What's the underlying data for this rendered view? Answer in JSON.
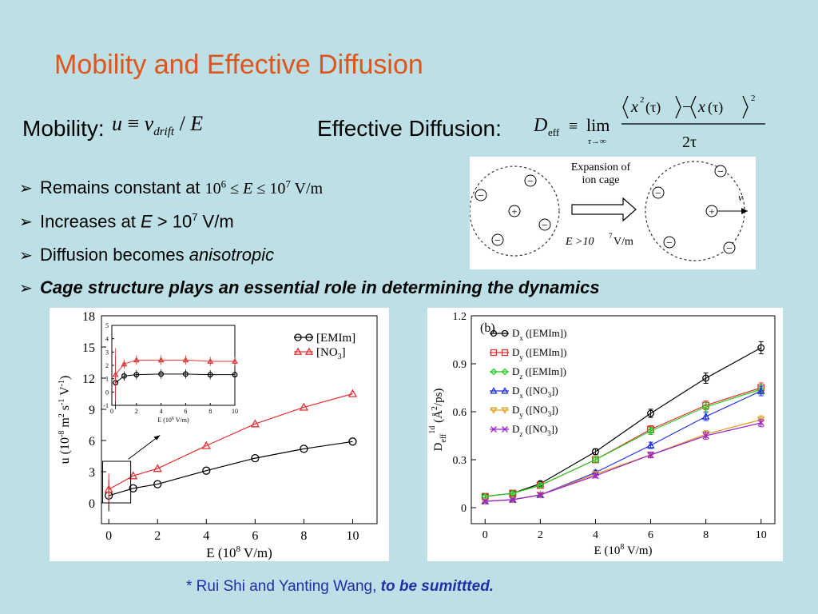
{
  "slide": {
    "title": "Mobility and Effective Diffusion",
    "mobility_label": "Mobility:",
    "mobility_eq": {
      "u": "u",
      "equiv": "≡",
      "v": "v",
      "sub": "drift",
      "slash": "/",
      "E": "E"
    },
    "effective_label": "Effective Diffusion:",
    "effective_eq": {
      "D": "D",
      "eff": "eff",
      "equiv": "≡",
      "lim": "lim",
      "limsub": "τ→∞",
      "x2": "x",
      "two": "2",
      "tau": "(τ)",
      "minus": "−",
      "x": "x",
      "sq": "2",
      "den": "2τ"
    },
    "bullets": [
      {
        "pre": "Remains constant at ",
        "a": "10",
        "a_exp": "6",
        "b": " ≤ ",
        "E": "E",
        "c": " ≤ 10",
        "c_exp": "7",
        "d": " V/m"
      },
      {
        "pre": "Increases at ",
        "E": "E",
        "b": " > 10",
        "b_exp": "7",
        "c": " V/m"
      },
      {
        "pre": "Diffusion becomes ",
        "em": "anisotropic"
      },
      {
        "strong": "Cage structure plays an essential role in determining the dynamics"
      }
    ],
    "bullet_glyph": "➢",
    "footnote": {
      "text": "* Rui Shi and Yanting Wang, ",
      "em": "to be sumittted."
    }
  },
  "cage_diagram": {
    "caption_1": "Expansion of",
    "caption_2": "ion cage",
    "field": "E >10",
    "field_exp": "7",
    "field_unit": " V/m",
    "velocity": "v",
    "plus": "+",
    "minus": "−"
  },
  "chart_data": [
    {
      "type": "line",
      "xlabel": "E (10^8 V/m)",
      "ylabel": "u (10^-8 m^2 s^-1 V^-1)",
      "xlim": [
        -0.3,
        11
      ],
      "ylim": [
        -2,
        18
      ],
      "xticks": [
        0,
        2,
        4,
        6,
        8,
        10
      ],
      "yticks": [
        0,
        3,
        6,
        9,
        12,
        15,
        18
      ],
      "legend_position": "top-right",
      "series": [
        {
          "name": "[EMIm]",
          "color": "#000000",
          "marker": "circle",
          "x": [
            0,
            0.1,
            0.2,
            0.4,
            0.6,
            0.8,
            1,
            2,
            4,
            6,
            8,
            10
          ],
          "y": [
            0.7,
            1.2,
            1.3,
            1.35,
            1.35,
            1.3,
            1.4,
            1.8,
            3.1,
            4.3,
            5.2,
            5.9
          ]
        },
        {
          "name": "[NO3]",
          "color": "#e53030",
          "marker": "triangle",
          "x": [
            0,
            0.1,
            0.2,
            0.4,
            0.6,
            0.8,
            1,
            2,
            4,
            6,
            8,
            10
          ],
          "y": [
            1.3,
            2.2,
            2.4,
            2.4,
            2.4,
            2.3,
            2.6,
            3.3,
            5.5,
            7.6,
            9.2,
            10.5
          ]
        }
      ],
      "error_bars": true,
      "inset": {
        "xlabel": "E (10^6 V/m)",
        "xlim": [
          0,
          10
        ],
        "ylim": [
          -1,
          5
        ],
        "xticks": [
          0,
          2,
          4,
          6,
          8,
          10
        ],
        "yticks": [
          -1,
          0,
          1,
          2,
          3,
          4,
          5
        ],
        "series": [
          {
            "name": "[EMIm]",
            "x": [
              0.3,
              1,
              2,
              4,
              6,
              8,
              10
            ],
            "y": [
              0.7,
              1.2,
              1.3,
              1.35,
              1.35,
              1.3,
              1.3
            ]
          },
          {
            "name": "[NO3]",
            "x": [
              0.3,
              1,
              2,
              4,
              6,
              8,
              10
            ],
            "y": [
              1.3,
              2.1,
              2.4,
              2.4,
              2.4,
              2.3,
              2.3
            ]
          }
        ]
      }
    },
    {
      "type": "line",
      "panel_label": "(b)",
      "xlabel": "E (10^8 V/m)",
      "ylabel": "D_eff^1d (Å^2/ps)",
      "xlim": [
        -0.5,
        10.5
      ],
      "ylim": [
        -0.1,
        1.2
      ],
      "xticks": [
        0,
        2,
        4,
        6,
        8,
        10
      ],
      "yticks": [
        0,
        0.3,
        0.6,
        0.9,
        1.2
      ],
      "legend_position": "top-left",
      "x": [
        0,
        1,
        2,
        4,
        6,
        8,
        10
      ],
      "series": [
        {
          "name": "Dx ([EMIm])",
          "color": "#000000",
          "marker": "circle",
          "y": [
            0.07,
            0.09,
            0.15,
            0.35,
            0.59,
            0.81,
            1.0
          ]
        },
        {
          "name": "Dy ([EMIm])",
          "color": "#e53030",
          "marker": "square",
          "y": [
            0.07,
            0.09,
            0.14,
            0.3,
            0.49,
            0.64,
            0.75
          ]
        },
        {
          "name": "Dz ([EMIm])",
          "color": "#22cc22",
          "marker": "diamond",
          "y": [
            0.07,
            0.09,
            0.14,
            0.3,
            0.48,
            0.63,
            0.74
          ]
        },
        {
          "name": "Dx ([NO3])",
          "color": "#1f2fe0",
          "marker": "triangle-up",
          "y": [
            0.04,
            0.05,
            0.08,
            0.22,
            0.39,
            0.57,
            0.73
          ]
        },
        {
          "name": "Dy ([NO3])",
          "color": "#e0a020",
          "marker": "triangle-down",
          "y": [
            0.04,
            0.05,
            0.08,
            0.21,
            0.33,
            0.46,
            0.55
          ]
        },
        {
          "name": "Dz ([NO3])",
          "color": "#9a22cc",
          "marker": "x",
          "y": [
            0.04,
            0.05,
            0.08,
            0.2,
            0.33,
            0.45,
            0.53
          ]
        }
      ],
      "error_bars": true
    }
  ]
}
